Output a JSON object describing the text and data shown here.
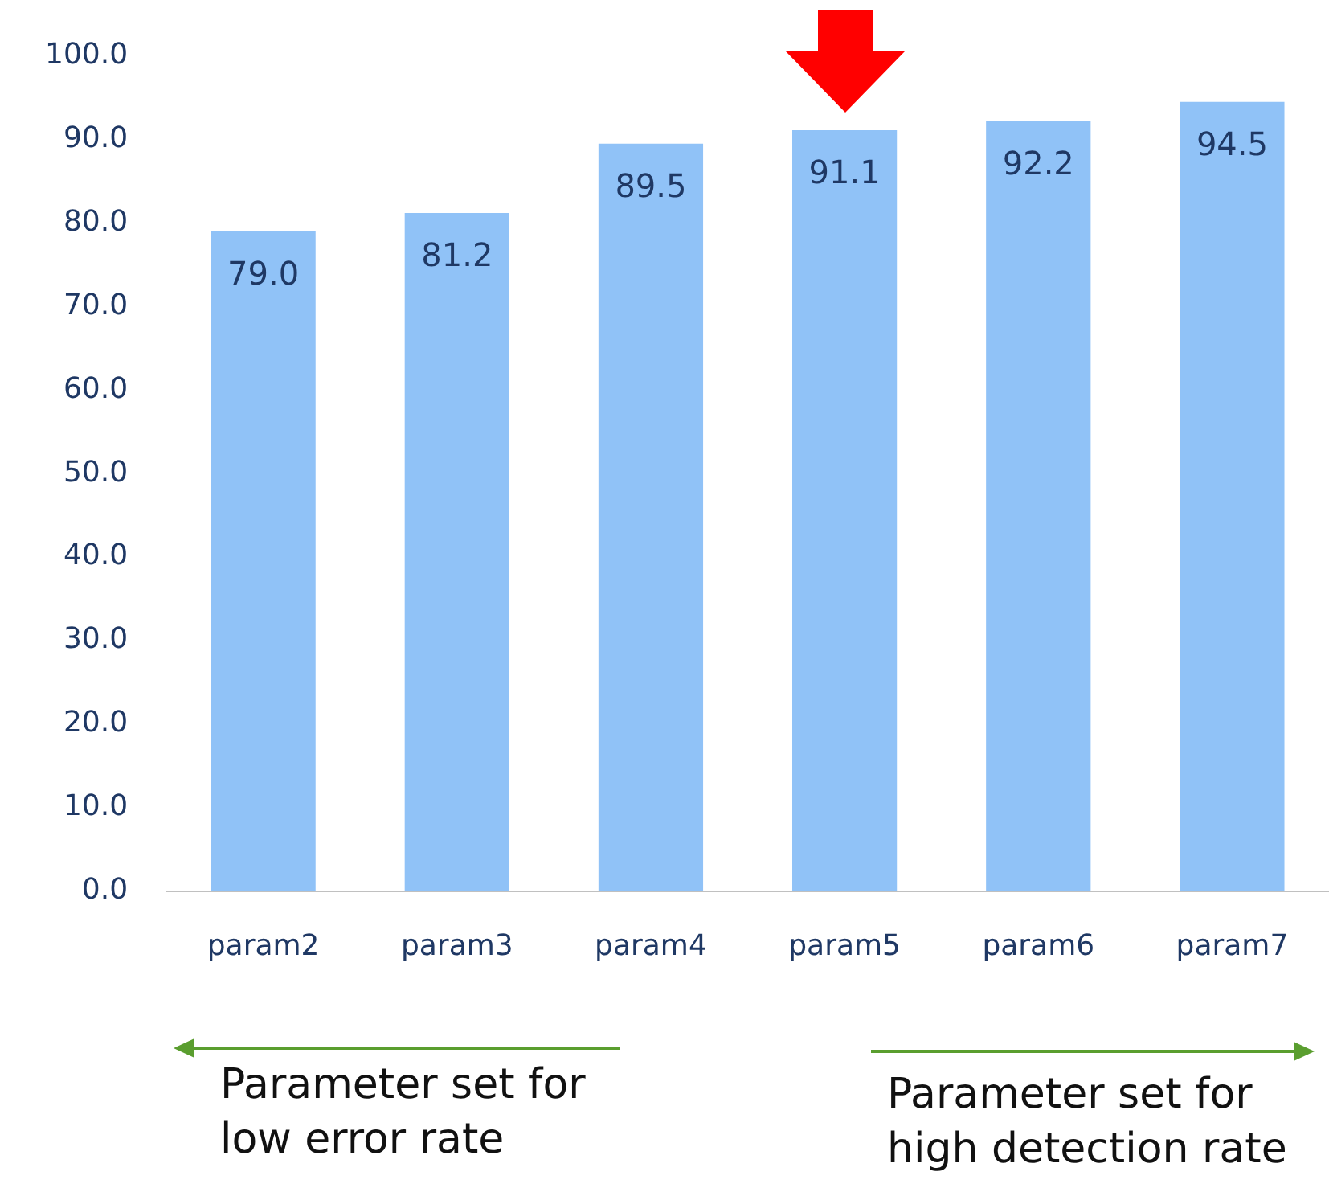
{
  "chart_data": {
    "type": "bar",
    "categories": [
      "param2",
      "param3",
      "param4",
      "param5",
      "param6",
      "param7"
    ],
    "values": [
      79.0,
      81.2,
      89.5,
      91.1,
      92.2,
      94.5
    ],
    "color": "#90c2f7",
    "ylim": [
      0,
      100
    ],
    "yticks": [
      {
        "value": 0,
        "label": "0.0"
      },
      {
        "value": 10,
        "label": "10.0"
      },
      {
        "value": 20,
        "label": "20.0"
      },
      {
        "value": 30,
        "label": "30.0"
      },
      {
        "value": 40,
        "label": "40.0"
      },
      {
        "value": 50,
        "label": "50.0"
      },
      {
        "value": 60,
        "label": "60.0"
      },
      {
        "value": 70,
        "label": "70.0"
      },
      {
        "value": 80,
        "label": "80.0"
      },
      {
        "value": 90,
        "label": "90.0"
      },
      {
        "value": 100,
        "label": "100.0"
      }
    ],
    "value_labels": [
      "79.0",
      "81.2",
      "89.5",
      "91.1",
      "92.2",
      "94.5"
    ],
    "annotations": [
      "Parameter set for\nlow error rate",
      "Parameter set for\nhigh detection rate"
    ]
  }
}
